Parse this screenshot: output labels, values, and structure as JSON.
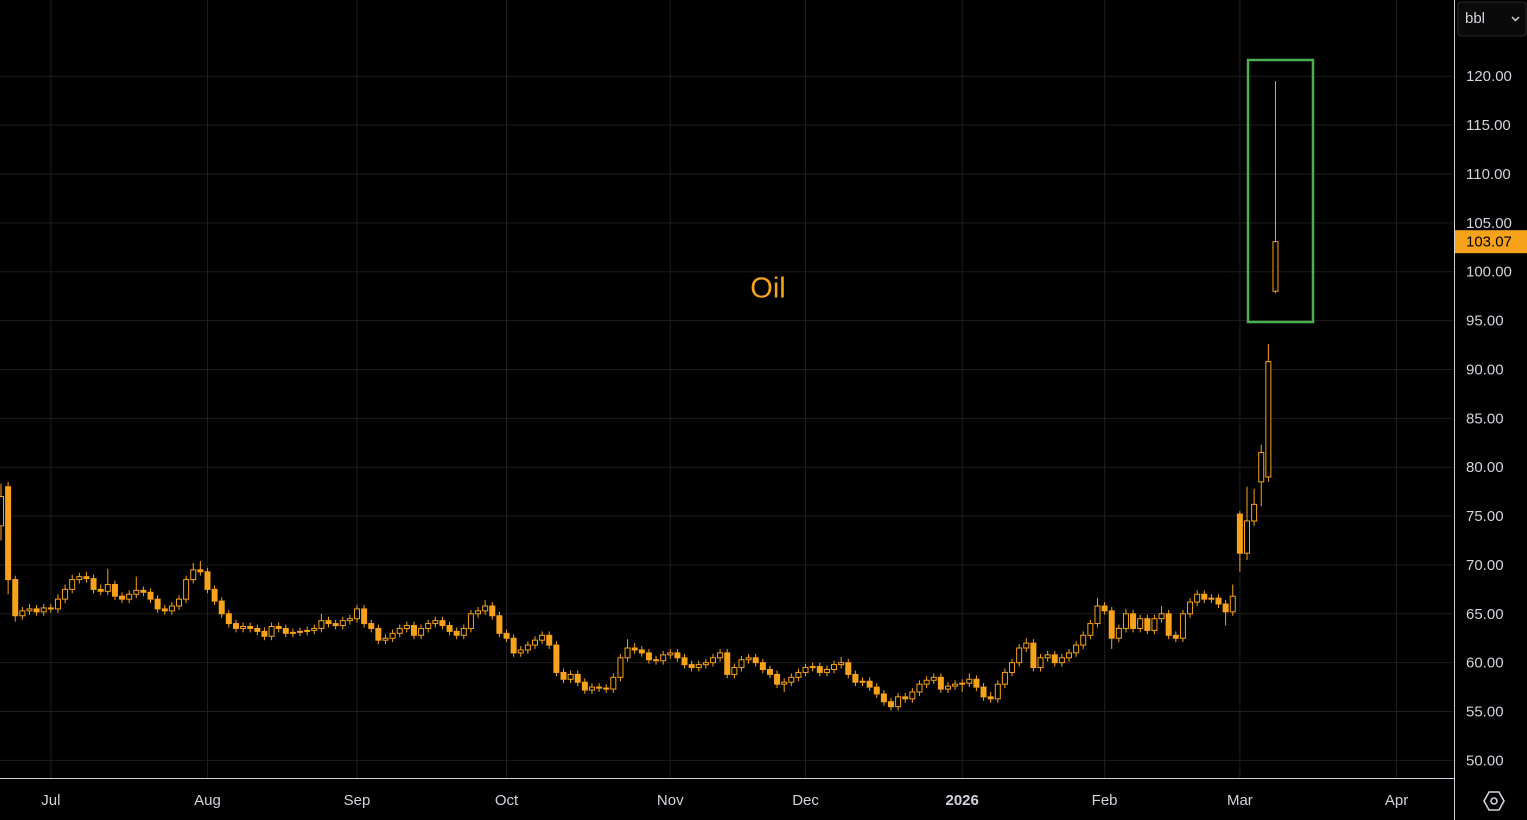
{
  "chart_data": {
    "type": "candlestick",
    "annotation": "Oil",
    "unit": "bbl",
    "color": "#f7a21b",
    "grid": true,
    "ylim": [
      48.2,
      127.8
    ],
    "yticks": [
      {
        "value": 50,
        "label": "50.00"
      },
      {
        "value": 55,
        "label": "55.00"
      },
      {
        "value": 60,
        "label": "60.00"
      },
      {
        "value": 65,
        "label": "65.00"
      },
      {
        "value": 70,
        "label": "70.00"
      },
      {
        "value": 75,
        "label": "75.00"
      },
      {
        "value": 80,
        "label": "80.00"
      },
      {
        "value": 85,
        "label": "85.00"
      },
      {
        "value": 90,
        "label": "90.00"
      },
      {
        "value": 95,
        "label": "95.00"
      },
      {
        "value": 100,
        "label": "100.00"
      },
      {
        "value": 105,
        "label": "105.00"
      },
      {
        "value": 110,
        "label": "110.00"
      },
      {
        "value": 115,
        "label": "115.00"
      },
      {
        "value": 120,
        "label": "120.00"
      }
    ],
    "categories": [
      null,
      null,
      null,
      null,
      null,
      null,
      null,
      "Jul",
      null,
      null,
      null,
      null,
      null,
      null,
      null,
      null,
      null,
      null,
      null,
      null,
      null,
      null,
      null,
      null,
      null,
      null,
      null,
      null,
      null,
      "Aug",
      null,
      null,
      null,
      null,
      null,
      null,
      null,
      null,
      null,
      null,
      null,
      null,
      null,
      null,
      null,
      null,
      null,
      null,
      null,
      null,
      "Sep",
      null,
      null,
      null,
      null,
      null,
      null,
      null,
      null,
      null,
      null,
      null,
      null,
      null,
      null,
      null,
      null,
      null,
      null,
      null,
      null,
      "Oct",
      null,
      null,
      null,
      null,
      null,
      null,
      null,
      null,
      null,
      null,
      null,
      null,
      null,
      null,
      null,
      null,
      null,
      null,
      null,
      null,
      null,
      null,
      "Nov",
      null,
      null,
      null,
      null,
      null,
      null,
      null,
      null,
      null,
      null,
      null,
      null,
      null,
      null,
      null,
      null,
      null,
      null,
      "Dec",
      null,
      null,
      null,
      null,
      null,
      null,
      null,
      null,
      null,
      null,
      null,
      null,
      null,
      null,
      null,
      null,
      null,
      null,
      null,
      null,
      null,
      "2026",
      null,
      null,
      null,
      null,
      null,
      null,
      null,
      null,
      null,
      null,
      null,
      null,
      null,
      null,
      null,
      null,
      null,
      null,
      null,
      "Feb",
      null,
      null,
      null,
      null,
      null,
      null,
      null,
      null,
      null,
      null,
      null,
      null,
      null,
      null,
      null,
      null,
      null,
      null,
      "Mar",
      null,
      null,
      null,
      null,
      null,
      null,
      null,
      null,
      null,
      null,
      null,
      null,
      null,
      null,
      null,
      null,
      null,
      null,
      null,
      null,
      null,
      "Apr",
      null,
      null,
      null,
      null,
      null,
      null,
      null
    ],
    "ohlc": [
      [
        74.0,
        78.3,
        72.5,
        77.0
      ],
      [
        78.0,
        78.5,
        67.0,
        68.5
      ],
      [
        68.5,
        68.9,
        64.2,
        64.8
      ],
      [
        64.8,
        65.7,
        64.4,
        65.3
      ],
      [
        65.3,
        66.0,
        64.9,
        65.5
      ],
      [
        65.5,
        65.9,
        64.8,
        65.2
      ],
      [
        65.2,
        66.0,
        64.8,
        65.6
      ],
      [
        65.6,
        66.0,
        65.1,
        65.5
      ],
      [
        65.5,
        67.0,
        65.1,
        66.5
      ],
      [
        66.5,
        68.0,
        66.1,
        67.5
      ],
      [
        67.5,
        69.0,
        67.1,
        68.5
      ],
      [
        68.5,
        69.2,
        68.1,
        68.8
      ],
      [
        68.8,
        69.3,
        68.2,
        68.6
      ],
      [
        68.6,
        69.0,
        67.1,
        67.5
      ],
      [
        67.5,
        68.0,
        66.9,
        67.3
      ],
      [
        67.3,
        69.6,
        66.9,
        68.0
      ],
      [
        68.0,
        68.4,
        66.4,
        66.8
      ],
      [
        66.8,
        67.2,
        66.1,
        66.5
      ],
      [
        66.5,
        67.4,
        66.1,
        67.0
      ],
      [
        67.0,
        68.8,
        66.6,
        67.4
      ],
      [
        67.4,
        67.8,
        66.8,
        67.2
      ],
      [
        67.2,
        67.6,
        66.1,
        66.5
      ],
      [
        66.5,
        66.9,
        65.1,
        65.5
      ],
      [
        65.5,
        65.9,
        64.9,
        65.3
      ],
      [
        65.3,
        66.2,
        64.9,
        65.8
      ],
      [
        65.8,
        66.9,
        65.4,
        66.5
      ],
      [
        66.5,
        68.9,
        66.1,
        68.5
      ],
      [
        68.5,
        70.2,
        68.1,
        69.5
      ],
      [
        69.5,
        70.4,
        68.9,
        69.3
      ],
      [
        69.3,
        69.7,
        67.1,
        67.5
      ],
      [
        67.5,
        67.9,
        65.9,
        66.3
      ],
      [
        66.3,
        66.7,
        64.6,
        65.0
      ],
      [
        65.0,
        65.4,
        63.6,
        64.0
      ],
      [
        64.0,
        64.4,
        63.1,
        63.5
      ],
      [
        63.5,
        64.1,
        63.1,
        63.7
      ],
      [
        63.7,
        64.1,
        63.1,
        63.5
      ],
      [
        63.5,
        63.9,
        62.8,
        63.2
      ],
      [
        63.2,
        63.6,
        62.3,
        62.7
      ],
      [
        62.7,
        64.1,
        62.3,
        63.7
      ],
      [
        63.7,
        64.1,
        63.1,
        63.5
      ],
      [
        63.5,
        63.9,
        62.6,
        63.0
      ],
      [
        63.0,
        63.5,
        62.6,
        63.1
      ],
      [
        63.1,
        63.6,
        62.7,
        63.2
      ],
      [
        63.2,
        63.7,
        62.8,
        63.3
      ],
      [
        63.3,
        63.9,
        62.9,
        63.5
      ],
      [
        63.5,
        65.0,
        63.1,
        64.3
      ],
      [
        64.3,
        64.7,
        63.6,
        64.0
      ],
      [
        64.0,
        64.4,
        63.4,
        63.8
      ],
      [
        63.8,
        64.7,
        63.4,
        64.3
      ],
      [
        64.3,
        64.9,
        63.9,
        64.5
      ],
      [
        64.5,
        65.9,
        64.1,
        65.5
      ],
      [
        65.5,
        65.9,
        63.6,
        64.0
      ],
      [
        64.0,
        64.4,
        63.1,
        63.5
      ],
      [
        63.5,
        63.9,
        61.9,
        62.3
      ],
      [
        62.3,
        62.9,
        61.9,
        62.5
      ],
      [
        62.5,
        63.4,
        62.1,
        63.0
      ],
      [
        63.0,
        63.9,
        62.6,
        63.5
      ],
      [
        63.5,
        64.2,
        63.1,
        63.8
      ],
      [
        63.8,
        64.2,
        62.4,
        62.8
      ],
      [
        62.8,
        63.9,
        62.4,
        63.5
      ],
      [
        63.5,
        64.4,
        63.1,
        64.0
      ],
      [
        64.0,
        64.7,
        63.6,
        64.3
      ],
      [
        64.3,
        64.7,
        63.4,
        63.8
      ],
      [
        63.8,
        64.2,
        62.8,
        63.2
      ],
      [
        63.2,
        63.6,
        62.4,
        62.8
      ],
      [
        62.8,
        63.9,
        62.4,
        63.5
      ],
      [
        63.5,
        65.4,
        63.1,
        65.0
      ],
      [
        65.0,
        65.7,
        64.6,
        65.3
      ],
      [
        65.3,
        66.4,
        64.9,
        65.8
      ],
      [
        65.8,
        66.2,
        64.4,
        64.8
      ],
      [
        64.8,
        65.2,
        62.6,
        63.0
      ],
      [
        63.0,
        63.4,
        62.1,
        62.5
      ],
      [
        62.5,
        62.9,
        60.6,
        61.0
      ],
      [
        61.0,
        61.7,
        60.6,
        61.3
      ],
      [
        61.3,
        62.2,
        60.9,
        61.8
      ],
      [
        61.8,
        62.7,
        61.4,
        62.3
      ],
      [
        62.3,
        63.2,
        61.9,
        62.8
      ],
      [
        62.8,
        63.2,
        61.4,
        61.8
      ],
      [
        61.8,
        62.2,
        58.6,
        59.0
      ],
      [
        59.0,
        59.4,
        57.9,
        58.3
      ],
      [
        58.3,
        59.2,
        57.9,
        58.8
      ],
      [
        58.8,
        59.2,
        57.6,
        58.0
      ],
      [
        58.0,
        58.4,
        56.8,
        57.2
      ],
      [
        57.2,
        57.9,
        56.8,
        57.5
      ],
      [
        57.5,
        57.9,
        57.0,
        57.4
      ],
      [
        57.4,
        57.8,
        56.9,
        57.3
      ],
      [
        57.3,
        58.9,
        56.9,
        58.5
      ],
      [
        58.5,
        60.9,
        58.1,
        60.5
      ],
      [
        60.5,
        62.4,
        60.1,
        61.5
      ],
      [
        61.5,
        62.0,
        60.9,
        61.3
      ],
      [
        61.3,
        61.7,
        60.6,
        61.0
      ],
      [
        61.0,
        61.4,
        59.9,
        60.3
      ],
      [
        60.3,
        60.7,
        59.8,
        60.2
      ],
      [
        60.2,
        61.2,
        59.8,
        60.8
      ],
      [
        60.8,
        61.4,
        60.4,
        61.0
      ],
      [
        61.0,
        61.4,
        60.1,
        60.5
      ],
      [
        60.5,
        60.9,
        59.4,
        59.8
      ],
      [
        59.8,
        60.2,
        59.1,
        59.5
      ],
      [
        59.5,
        60.2,
        59.1,
        59.8
      ],
      [
        59.8,
        60.4,
        59.4,
        60.0
      ],
      [
        60.0,
        60.9,
        59.6,
        60.5
      ],
      [
        60.5,
        61.4,
        60.1,
        61.0
      ],
      [
        61.0,
        61.4,
        58.4,
        58.8
      ],
      [
        58.8,
        59.9,
        58.4,
        59.5
      ],
      [
        59.5,
        60.7,
        59.1,
        60.3
      ],
      [
        60.3,
        60.9,
        59.9,
        60.5
      ],
      [
        60.5,
        60.9,
        59.6,
        60.0
      ],
      [
        60.0,
        60.4,
        58.9,
        59.3
      ],
      [
        59.3,
        59.7,
        58.4,
        58.8
      ],
      [
        58.8,
        59.2,
        57.4,
        57.8
      ],
      [
        57.8,
        58.4,
        57.0,
        58.0
      ],
      [
        58.0,
        58.9,
        57.6,
        58.5
      ],
      [
        58.5,
        59.4,
        58.1,
        59.0
      ],
      [
        59.0,
        59.9,
        58.6,
        59.5
      ],
      [
        59.5,
        60.0,
        59.1,
        59.6
      ],
      [
        59.6,
        60.0,
        58.6,
        59.0
      ],
      [
        59.0,
        59.7,
        58.6,
        59.3
      ],
      [
        59.3,
        60.2,
        58.9,
        59.8
      ],
      [
        59.8,
        60.6,
        59.4,
        60.0
      ],
      [
        60.0,
        60.4,
        58.4,
        58.8
      ],
      [
        58.8,
        59.2,
        57.6,
        58.0
      ],
      [
        58.0,
        58.5,
        57.6,
        58.1
      ],
      [
        58.1,
        58.5,
        57.1,
        57.5
      ],
      [
        57.5,
        57.9,
        56.4,
        56.8
      ],
      [
        56.8,
        57.2,
        55.6,
        56.0
      ],
      [
        56.0,
        56.4,
        55.1,
        55.5
      ],
      [
        55.5,
        56.9,
        55.1,
        56.5
      ],
      [
        56.5,
        56.9,
        55.9,
        56.3
      ],
      [
        56.3,
        57.4,
        55.9,
        57.0
      ],
      [
        57.0,
        58.2,
        56.6,
        57.8
      ],
      [
        57.8,
        58.6,
        57.4,
        58.2
      ],
      [
        58.2,
        58.9,
        57.8,
        58.5
      ],
      [
        58.5,
        58.9,
        56.9,
        57.3
      ],
      [
        57.3,
        58.0,
        56.9,
        57.6
      ],
      [
        57.6,
        58.2,
        57.2,
        57.8
      ],
      [
        57.8,
        58.3,
        57.0,
        57.9
      ],
      [
        57.9,
        58.9,
        57.5,
        58.3
      ],
      [
        58.3,
        58.7,
        57.1,
        57.5
      ],
      [
        57.5,
        57.9,
        56.1,
        56.5
      ],
      [
        56.5,
        57.0,
        55.9,
        56.3
      ],
      [
        56.3,
        58.2,
        55.9,
        57.8
      ],
      [
        57.8,
        59.4,
        57.4,
        59.0
      ],
      [
        59.0,
        60.4,
        58.6,
        60.0
      ],
      [
        60.0,
        61.9,
        59.6,
        61.5
      ],
      [
        61.5,
        62.5,
        61.1,
        62.0
      ],
      [
        62.0,
        62.4,
        59.1,
        59.5
      ],
      [
        59.5,
        60.9,
        59.1,
        60.5
      ],
      [
        60.5,
        61.2,
        60.1,
        60.8
      ],
      [
        60.8,
        61.2,
        59.6,
        60.0
      ],
      [
        60.0,
        60.9,
        59.6,
        60.5
      ],
      [
        60.5,
        61.4,
        60.1,
        61.0
      ],
      [
        61.0,
        62.2,
        60.6,
        61.8
      ],
      [
        61.8,
        63.2,
        61.4,
        62.8
      ],
      [
        62.8,
        64.4,
        62.4,
        64.0
      ],
      [
        64.0,
        66.6,
        63.6,
        65.8
      ],
      [
        65.8,
        66.2,
        64.9,
        65.3
      ],
      [
        65.3,
        65.7,
        61.4,
        62.5
      ],
      [
        62.5,
        63.9,
        62.1,
        63.5
      ],
      [
        63.5,
        65.5,
        63.1,
        65.0
      ],
      [
        65.0,
        65.4,
        63.1,
        63.5
      ],
      [
        63.5,
        64.9,
        63.1,
        64.5
      ],
      [
        64.5,
        64.9,
        62.9,
        63.3
      ],
      [
        63.3,
        64.9,
        62.9,
        64.5
      ],
      [
        64.5,
        65.8,
        64.1,
        65.0
      ],
      [
        65.0,
        65.4,
        62.4,
        62.8
      ],
      [
        62.8,
        63.2,
        62.1,
        62.5
      ],
      [
        62.5,
        65.4,
        62.1,
        65.0
      ],
      [
        65.0,
        66.6,
        64.6,
        66.2
      ],
      [
        66.2,
        67.4,
        65.8,
        67.0
      ],
      [
        67.0,
        67.4,
        66.1,
        66.5
      ],
      [
        66.5,
        67.0,
        66.1,
        66.6
      ],
      [
        66.6,
        67.0,
        65.6,
        66.0
      ],
      [
        66.0,
        66.4,
        63.8,
        65.2
      ],
      [
        65.2,
        68.0,
        64.8,
        66.8
      ],
      [
        75.2,
        75.5,
        69.3,
        71.2
      ],
      [
        71.2,
        78.0,
        70.5,
        74.5
      ],
      [
        74.5,
        77.8,
        74.0,
        76.2
      ],
      [
        78.5,
        82.3,
        76.0,
        81.5
      ],
      [
        79.0,
        92.6,
        78.5,
        90.8
      ],
      [
        98.0,
        119.5,
        97.8,
        103.07
      ],
      null,
      null,
      null,
      null,
      null,
      null,
      null,
      null,
      null,
      null,
      null,
      null,
      null,
      null,
      null,
      null,
      null,
      null,
      null,
      null,
      null,
      null,
      null,
      null
    ]
  }
}
